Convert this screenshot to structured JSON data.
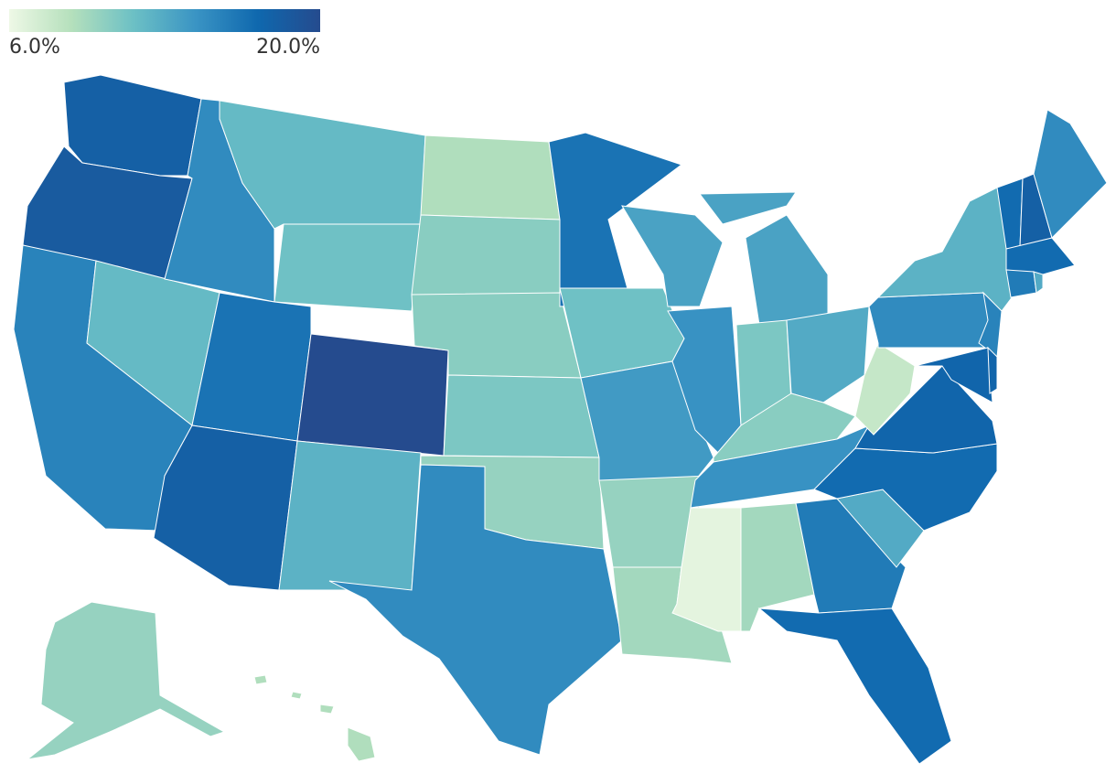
{
  "chart_data": {
    "type": "choropleth",
    "scale_min": {
      "value": 6,
      "label": "6.0%"
    },
    "scale_max": {
      "value": 20,
      "label": "20.0%"
    },
    "colors": [
      "#eef8e6",
      "#b5e0bc",
      "#6cc0c5",
      "#3a94c4",
      "#0f68ae",
      "#254b8e"
    ],
    "values": [
      18,
      18.5,
      15.5,
      12,
      15,
      12,
      11.5,
      16.5,
      18,
      20,
      12.5,
      9,
      10.5,
      10.5,
      11,
      10,
      15,
      16.5,
      11.5,
      14,
      10,
      9.5,
      13.5,
      13.5,
      14.5,
      11,
      13,
      10.5,
      14.5,
      6.5,
      9.5,
      16,
      17,
      13,
      17,
      17.5,
      8,
      15,
      12.5,
      15.5,
      17.5,
      17.5,
      17,
      18,
      15,
      17,
      16,
      13,
      10,
      9
    ]
  }
}
